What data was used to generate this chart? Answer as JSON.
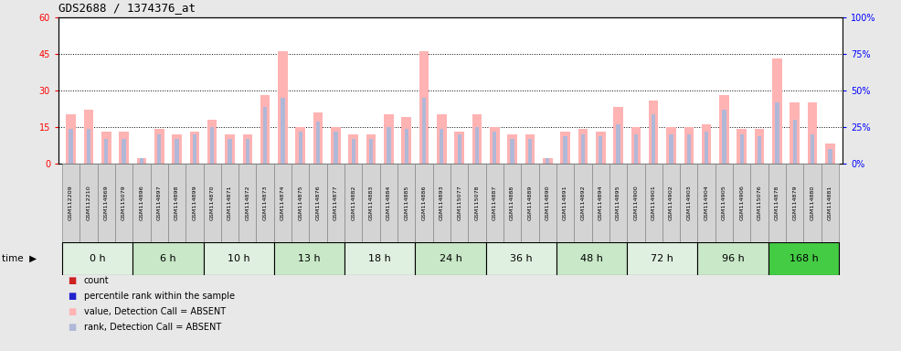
{
  "title": "GDS2688 / 1374376_at",
  "samples": [
    "GSM112209",
    "GSM112210",
    "GSM114869",
    "GSM115079",
    "GSM114896",
    "GSM114897",
    "GSM114898",
    "GSM114899",
    "GSM114870",
    "GSM114871",
    "GSM114872",
    "GSM114873",
    "GSM114874",
    "GSM114875",
    "GSM114876",
    "GSM114877",
    "GSM114882",
    "GSM114883",
    "GSM114884",
    "GSM114885",
    "GSM114886",
    "GSM114893",
    "GSM115077",
    "GSM115078",
    "GSM114887",
    "GSM114888",
    "GSM114889",
    "GSM114890",
    "GSM114891",
    "GSM114892",
    "GSM114894",
    "GSM114895",
    "GSM114900",
    "GSM114901",
    "GSM114902",
    "GSM114903",
    "GSM114904",
    "GSM114905",
    "GSM114906",
    "GSM115076",
    "GSM114878",
    "GSM114879",
    "GSM114880",
    "GSM114881"
  ],
  "values": [
    20,
    22,
    13,
    13,
    2,
    14,
    12,
    13,
    18,
    12,
    12,
    28,
    46,
    15,
    21,
    15,
    12,
    12,
    20,
    19,
    46,
    20,
    13,
    20,
    15,
    12,
    12,
    2,
    13,
    14,
    13,
    23,
    15,
    26,
    15,
    15,
    16,
    28,
    14,
    14,
    43,
    25,
    25,
    8
  ],
  "ranks": [
    14,
    14,
    10,
    10,
    2,
    12,
    10,
    12,
    15,
    10,
    10,
    23,
    27,
    13,
    17,
    13,
    10,
    10,
    15,
    14,
    27,
    14,
    12,
    15,
    13,
    10,
    10,
    2,
    11,
    12,
    11,
    16,
    12,
    20,
    12,
    12,
    13,
    22,
    12,
    11,
    25,
    18,
    12,
    6
  ],
  "time_groups": [
    {
      "label": "0 h",
      "start": 0,
      "end": 4,
      "color": "#e0f0e0"
    },
    {
      "label": "6 h",
      "start": 4,
      "end": 8,
      "color": "#c8e8c8"
    },
    {
      "label": "10 h",
      "start": 8,
      "end": 12,
      "color": "#e0f0e0"
    },
    {
      "label": "13 h",
      "start": 12,
      "end": 16,
      "color": "#c8e8c8"
    },
    {
      "label": "18 h",
      "start": 16,
      "end": 20,
      "color": "#e0f0e0"
    },
    {
      "label": "24 h",
      "start": 20,
      "end": 24,
      "color": "#c8e8c8"
    },
    {
      "label": "36 h",
      "start": 24,
      "end": 28,
      "color": "#e0f0e0"
    },
    {
      "label": "48 h",
      "start": 28,
      "end": 32,
      "color": "#c8e8c8"
    },
    {
      "label": "72 h",
      "start": 32,
      "end": 36,
      "color": "#e0f0e0"
    },
    {
      "label": "96 h",
      "start": 36,
      "end": 40,
      "color": "#c8e8c8"
    },
    {
      "label": "168 h",
      "start": 40,
      "end": 44,
      "color": "#44cc44"
    }
  ],
  "ylim_left": [
    0,
    60
  ],
  "ylim_right": [
    0,
    100
  ],
  "yticks_left": [
    0,
    15,
    30,
    45,
    60
  ],
  "yticks_right": [
    0,
    25,
    50,
    75,
    100
  ],
  "ytick_labels_left": [
    "0",
    "15",
    "30",
    "45",
    "60"
  ],
  "ytick_labels_right": [
    "0%",
    "25%",
    "50%",
    "75%",
    "100%"
  ],
  "hlines": [
    15,
    30,
    45
  ],
  "bar_color_value": "#ffb3b3",
  "bar_color_rank": "#b0b8d8",
  "legend_items": [
    {
      "color": "#cc2222",
      "label": "count"
    },
    {
      "color": "#2222cc",
      "label": "percentile rank within the sample"
    },
    {
      "color": "#ffb3b3",
      "label": "value, Detection Call = ABSENT"
    },
    {
      "color": "#b0b8d8",
      "label": "rank, Detection Call = ABSENT"
    }
  ],
  "fig_bg": "#e8e8e8",
  "plot_bg": "#ffffff"
}
